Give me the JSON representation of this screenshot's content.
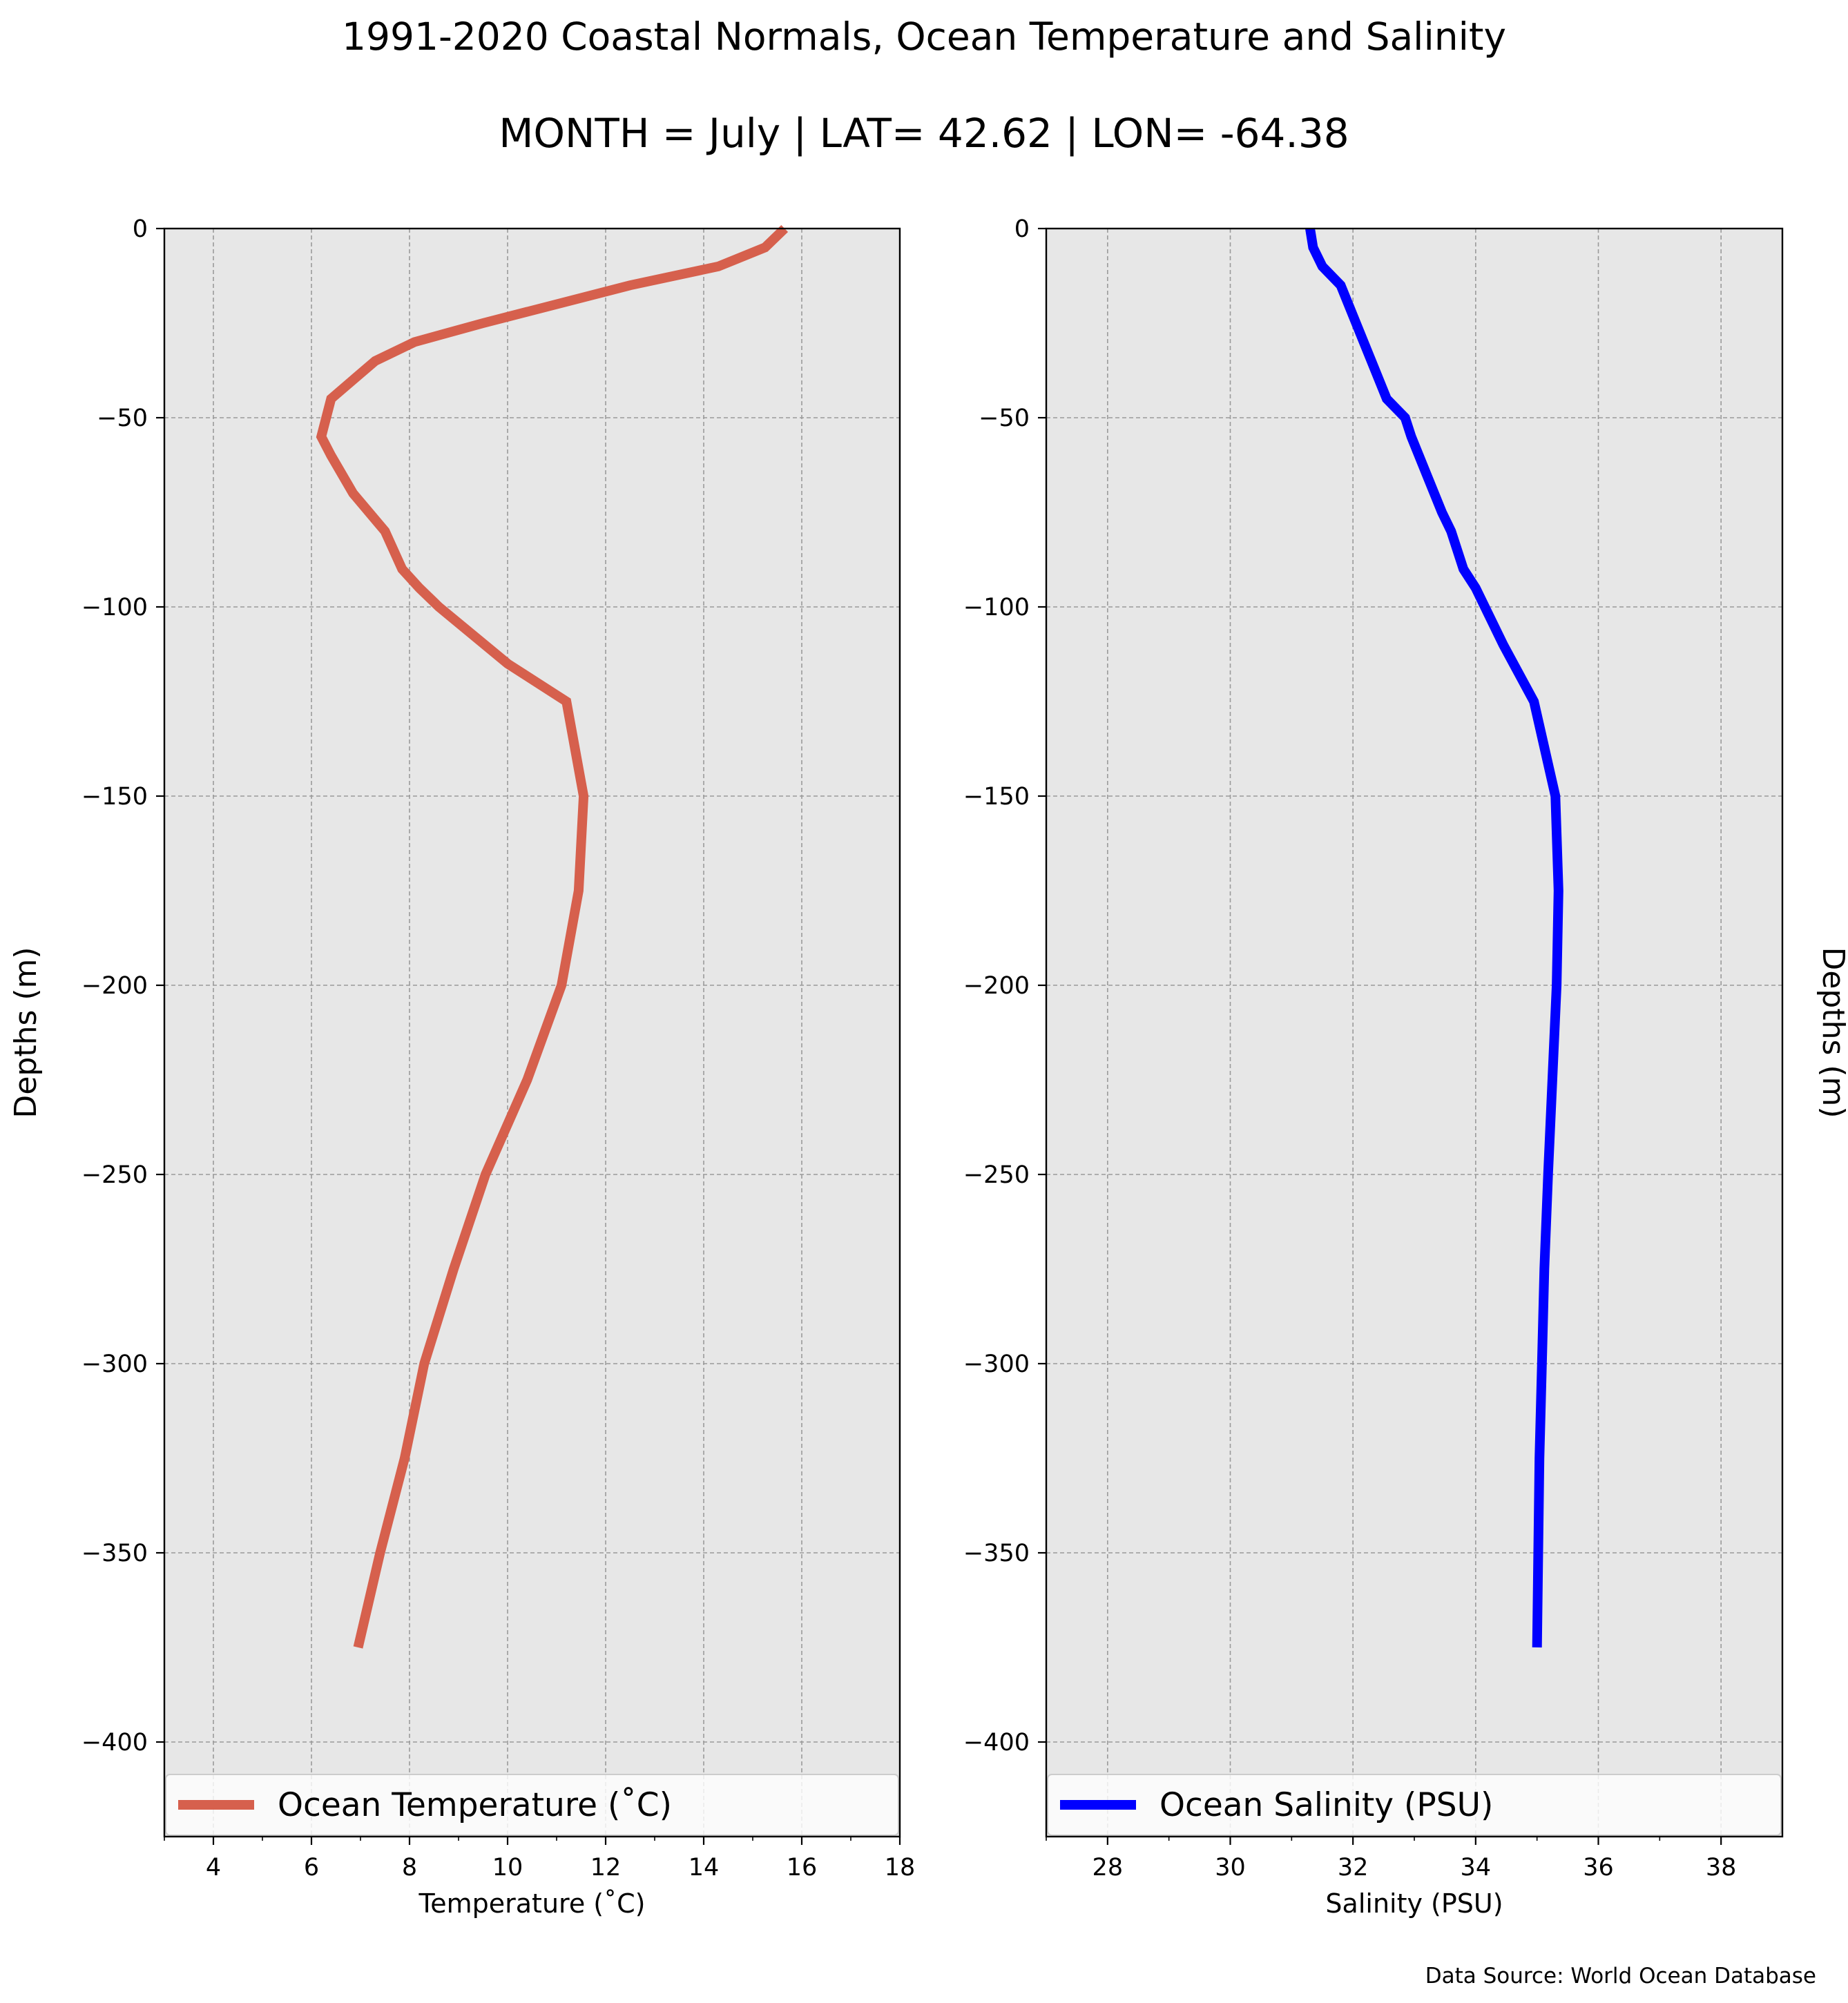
{
  "title": "1991-2020 Coastal Normals, Ocean Temperature and Salinity",
  "subtitle": "MONTH = July | LAT= 42.62 | LON= -64.38",
  "source_note": "Data Source: World Ocean Database",
  "colors": {
    "background": "#ffffff",
    "plot_bg": "#e7e7e7",
    "grid": "#9a9a9a",
    "temperature": "#d6604d",
    "salinity": "#0000ff"
  },
  "chart_data": [
    {
      "type": "line",
      "xlabel": "Temperature ($^\\circ$C)",
      "xlabel_display": "Temperature (˚C)",
      "ylabel": "Depths (m)",
      "ylabel_side": "left",
      "xlim": [
        3,
        18
      ],
      "ylim": [
        -425,
        0
      ],
      "xticks": [
        4,
        6,
        8,
        10,
        12,
        14,
        16,
        18
      ],
      "yticks": [
        0,
        -50,
        -100,
        -150,
        -200,
        -250,
        -300,
        -350,
        -400
      ],
      "ytick_labels": [
        "0",
        "−50",
        "−100",
        "−150",
        "−200",
        "−250",
        "−300",
        "−350",
        "−400"
      ],
      "grid": true,
      "legend_location": "lower center",
      "series": [
        {
          "name": "Ocean Temperature (˚C)",
          "color": "#d6604d",
          "x": [
            15.65,
            15.25,
            14.3,
            12.5,
            11.0,
            9.5,
            8.1,
            7.3,
            6.85,
            6.4,
            6.2,
            6.4,
            6.85,
            7.5,
            7.85,
            8.2,
            8.6,
            10.0,
            11.2,
            11.55,
            11.45,
            11.1,
            10.4,
            9.55,
            8.9,
            8.3,
            7.9,
            7.4,
            6.95
          ],
          "y": [
            0,
            -5,
            -10,
            -15,
            -20,
            -25,
            -30,
            -35,
            -40,
            -45,
            -55,
            -60,
            -70,
            -80,
            -90,
            -95,
            -100,
            -115,
            -125,
            -150,
            -175,
            -200,
            -225,
            -250,
            -275,
            -300,
            -325,
            -350,
            -375
          ]
        }
      ]
    },
    {
      "type": "line",
      "xlabel": "Salinity (PSU)",
      "ylabel": "Depths (m)",
      "ylabel_side": "right",
      "xlim": [
        27,
        39
      ],
      "ylim": [
        -425,
        0
      ],
      "xticks": [
        28,
        30,
        32,
        34,
        36,
        38
      ],
      "yticks": [
        0,
        -50,
        -100,
        -150,
        -200,
        -250,
        -300,
        -350,
        -400
      ],
      "ytick_labels": [
        "0",
        "−50",
        "−100",
        "−150",
        "−200",
        "−250",
        "−300",
        "−350",
        "−400"
      ],
      "grid": true,
      "legend_location": "lower center",
      "series": [
        {
          "name": "Ocean Salinity (PSU)",
          "color": "#0000ff",
          "x": [
            31.3,
            31.35,
            31.5,
            31.8,
            32.05,
            32.3,
            32.55,
            32.85,
            32.95,
            33.2,
            33.45,
            33.6,
            33.8,
            34.0,
            34.45,
            34.95,
            35.3,
            35.35,
            35.32,
            35.25,
            35.18,
            35.12,
            35.08,
            35.04,
            35.0
          ],
          "y": [
            0,
            -5,
            -10,
            -15,
            -25,
            -35,
            -45,
            -50,
            -55,
            -65,
            -75,
            -80,
            -90,
            -95,
            -110,
            -125,
            -150,
            -175,
            -200,
            -225,
            -250,
            -275,
            -300,
            -325,
            -375
          ]
        }
      ]
    }
  ]
}
